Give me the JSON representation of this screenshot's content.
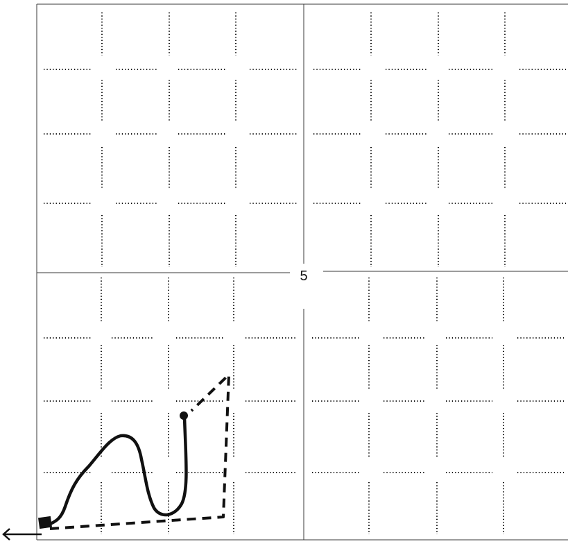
{
  "figure": {
    "center_label": "5",
    "colors": {
      "ink": "#111111",
      "frame": "#3a3a3a",
      "paper": "#ffffff"
    },
    "icons": {
      "start_marker": "filled-square-icon",
      "end_marker": "filled-dot-icon",
      "exit_arrow": "arrow-left-icon"
    }
  }
}
